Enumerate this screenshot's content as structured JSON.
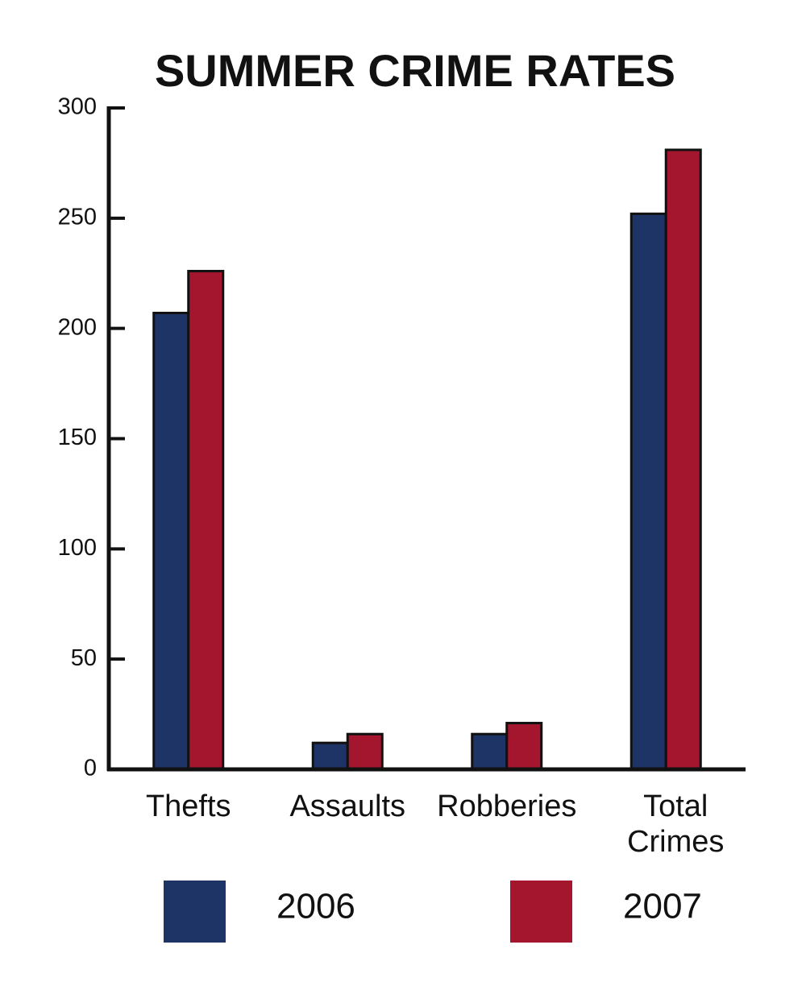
{
  "chart_data": {
    "type": "bar",
    "title": "SUMMER CRIME RATES",
    "categories": [
      "Thefts",
      "Assaults",
      "Robberies",
      "Total Crimes"
    ],
    "series": [
      {
        "name": "2006",
        "color": "#1f3466",
        "values": [
          207,
          12,
          16,
          252
        ]
      },
      {
        "name": "2007",
        "color": "#a3162e",
        "values": [
          226,
          16,
          21,
          281
        ]
      }
    ],
    "ylim": [
      0,
      300
    ],
    "yticks": [
      0,
      50,
      100,
      150,
      200,
      250,
      300
    ],
    "grid": false
  }
}
